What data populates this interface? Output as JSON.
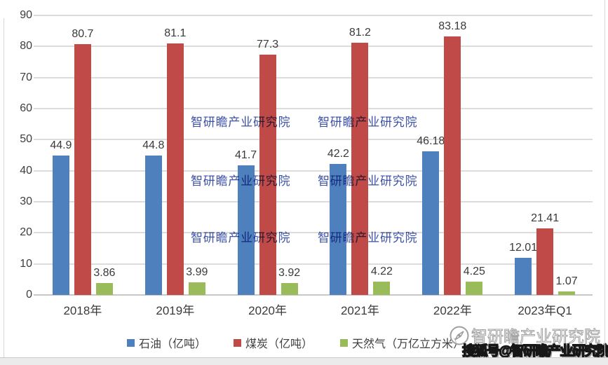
{
  "chart_data": {
    "type": "bar",
    "title": "",
    "categories": [
      "2018年",
      "2019年",
      "2020年",
      "2021年",
      "2022年",
      "2023年Q1"
    ],
    "series": [
      {
        "key": "oil",
        "name": "石油（亿吨）",
        "color": "#4e80bd",
        "values": [
          44.9,
          44.8,
          41.7,
          42.2,
          46.18,
          12.01
        ]
      },
      {
        "key": "coal",
        "name": "煤炭（亿吨）",
        "color": "#bf4a47",
        "values": [
          80.7,
          81.1,
          77.3,
          81.2,
          83.18,
          21.41
        ]
      },
      {
        "key": "gas",
        "name": "天然气（万亿立方米）",
        "color": "#9abb59",
        "values": [
          3.86,
          3.99,
          3.92,
          4.22,
          4.25,
          1.07
        ]
      }
    ],
    "xlabel": "",
    "ylabel": "",
    "ylim": [
      0,
      90
    ],
    "yticks": [
      0,
      10,
      20,
      30,
      40,
      50,
      60,
      70,
      80,
      90
    ],
    "grid": true,
    "legend_position": "bottom",
    "data_labels": true
  },
  "watermarks": {
    "inner_text": "智研瞻产业研究院",
    "inner_color": "#3b51a8",
    "source_text": "智研瞻产业研究院",
    "sohu_text": "搜狐号@智研瞻产业研究院",
    "compass_icon": "compass-logo"
  },
  "colors": {
    "grid": "#dcdcdc",
    "axis_line": "#c8c8c8",
    "tick_text": "#3d3d3d"
  }
}
